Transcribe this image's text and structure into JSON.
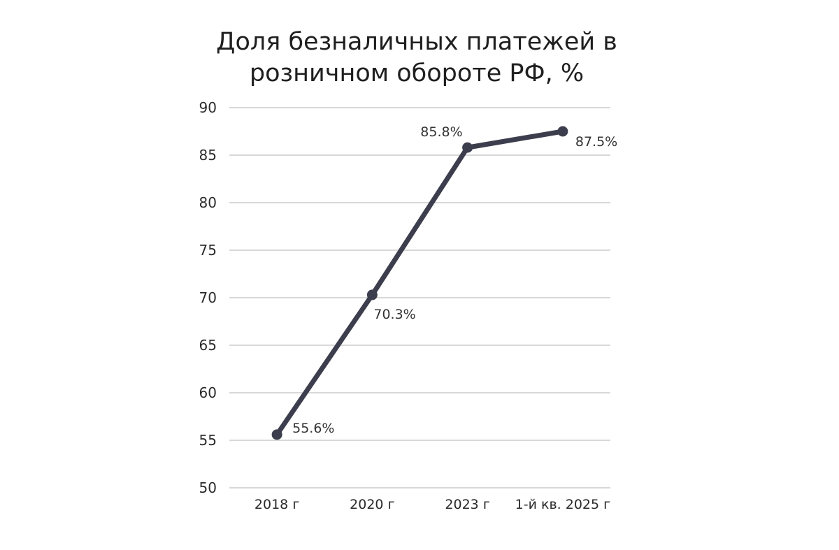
{
  "chart_data": {
    "type": "line",
    "title_lines": [
      "Доля безналичных платежей в",
      "розничном обороте РФ, %"
    ],
    "categories": [
      "2018 г",
      "2020 г",
      "2023 г",
      "1-й кв. 2025 г"
    ],
    "series": [
      {
        "values": [
          55.6,
          70.3,
          85.8,
          87.5
        ],
        "labels": [
          "55.6%",
          "70.3%",
          "85.8%",
          "87.5%"
        ],
        "color": "#3d3e4d"
      }
    ],
    "ylim": [
      50,
      90
    ],
    "yticks": [
      "50",
      "55",
      "60",
      "65",
      "70",
      "75",
      "80",
      "85",
      "90"
    ],
    "grid": true,
    "grid_color": "#cccccc",
    "legend": "none"
  }
}
